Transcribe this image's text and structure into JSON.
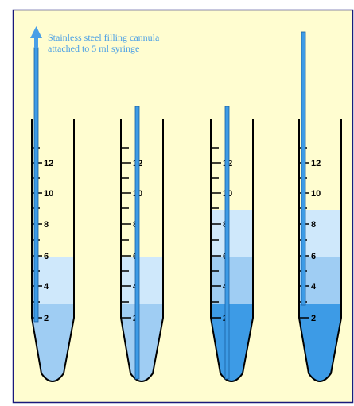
{
  "caption": {
    "line1": "Stainless steel filling cannula",
    "line2": "attached to 5 ml syringe"
  },
  "scale_labels": [
    "12",
    "10",
    "8",
    "6",
    "4",
    "2"
  ],
  "colors": {
    "background": "#fffdd0",
    "border": "#1a1a7a",
    "cannula": "#3d9be6",
    "arrow": "#4a9fe6",
    "layer_light": "#cfe8fb",
    "layer_mid": "#9fcdf3",
    "layer_dark": "#3d9be6",
    "tube_outline": "#000000"
  },
  "tubes": [
    {
      "id": 1,
      "layers": [
        "mid",
        "light"
      ]
    },
    {
      "id": 2,
      "layers": [
        "mid",
        "light"
      ]
    },
    {
      "id": 3,
      "layers": [
        "dark",
        "mid",
        "light"
      ]
    },
    {
      "id": 4,
      "layers": [
        "dark",
        "mid",
        "light"
      ]
    }
  ]
}
